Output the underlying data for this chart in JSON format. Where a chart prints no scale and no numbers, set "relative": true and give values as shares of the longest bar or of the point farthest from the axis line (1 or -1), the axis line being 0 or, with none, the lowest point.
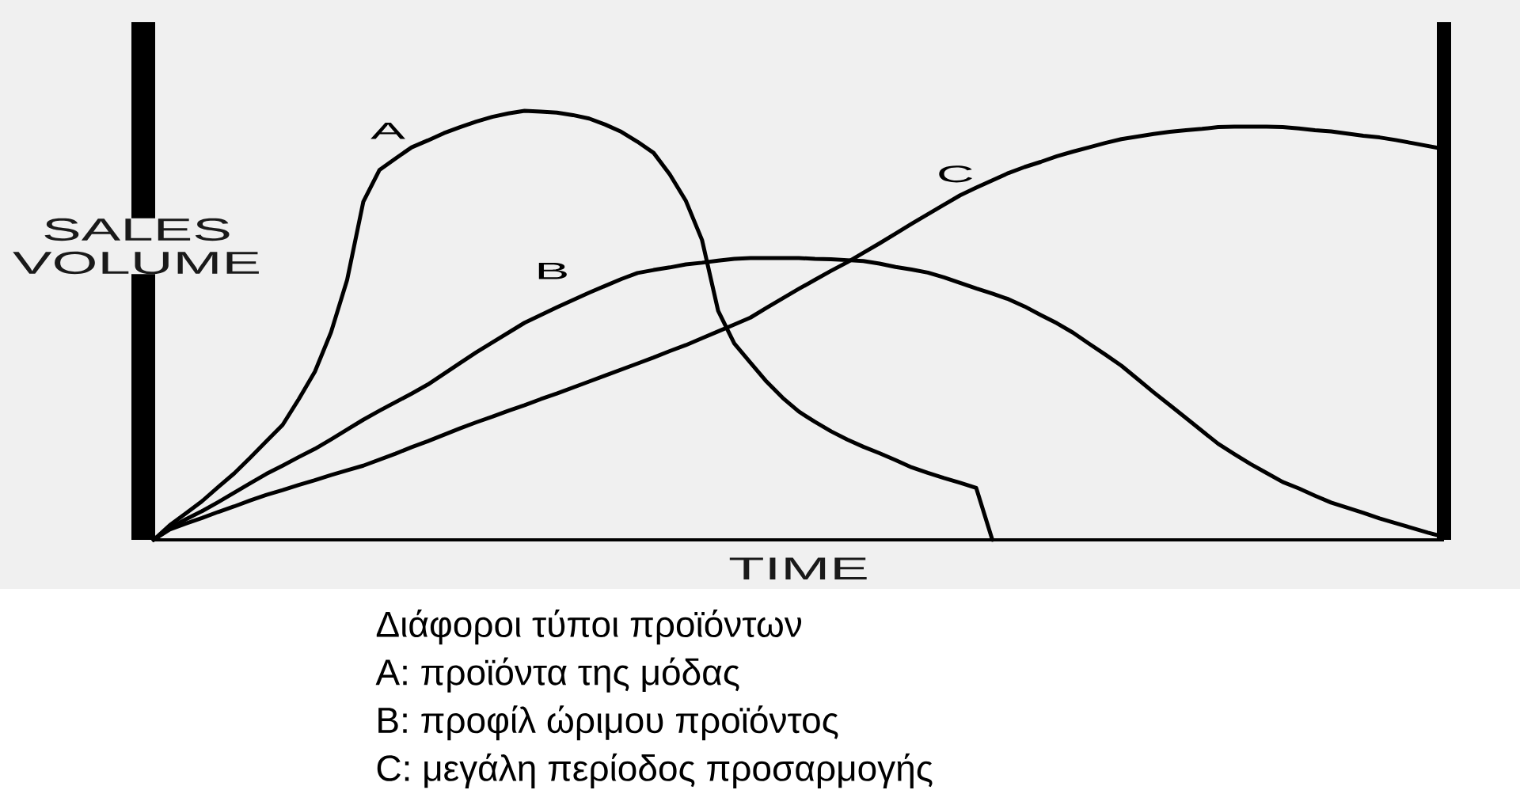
{
  "chart_data": {
    "type": "line",
    "relative": true,
    "xlabel": "TIME",
    "ylabel": "SALES VOLUME",
    "categories": [
      null,
      null,
      null,
      null,
      null,
      null,
      null,
      null,
      null,
      null,
      null,
      null,
      null,
      null,
      null,
      null,
      null,
      null,
      null,
      null,
      null,
      null,
      null,
      null,
      null,
      null,
      null,
      null,
      null,
      null,
      null,
      null,
      null,
      null,
      null,
      null,
      null,
      null,
      null,
      null,
      null,
      null,
      null,
      null,
      null,
      null,
      null,
      null,
      null,
      null,
      null,
      null,
      null,
      null,
      null,
      null,
      null,
      null,
      null,
      null,
      null,
      null,
      null,
      null,
      null,
      null,
      null,
      null,
      null,
      null,
      null,
      null,
      null,
      null,
      null,
      null,
      null,
      null,
      null,
      null,
      null
    ],
    "series": [
      {
        "name": "A",
        "color": "#000000",
        "values": [
          0,
          0.034,
          0.062,
          0.09,
          0.123,
          0.155,
          0.192,
          0.23,
          0.268,
          0.328,
          0.392,
          0.484,
          0.606,
          0.788,
          0.862,
          0.889,
          0.915,
          0.931,
          0.948,
          0.962,
          0.975,
          0.986,
          0.994,
          1,
          0.998,
          0.996,
          0.99,
          0.982,
          0.968,
          0.951,
          0.928,
          0.902,
          0.852,
          0.79,
          0.699,
          0.534,
          0.458,
          0.413,
          0.369,
          0.331,
          0.299,
          0.275,
          0.253,
          0.234,
          0.217,
          0.202,
          0.186,
          0.169,
          0.156,
          0.144,
          0.133,
          0.121,
          0,
          null,
          null,
          null,
          null,
          null,
          null,
          null,
          null,
          null,
          null,
          null,
          null,
          null,
          null,
          null,
          null,
          null,
          null,
          null,
          null,
          null,
          null,
          null,
          null,
          null,
          null,
          null,
          null
        ]
      },
      {
        "name": "B",
        "color": "#000000",
        "values": [
          0,
          0.028,
          0.048,
          0.067,
          0.088,
          0.11,
          0.132,
          0.154,
          0.173,
          0.193,
          0.212,
          0.234,
          0.257,
          0.28,
          0.301,
          0.321,
          0.341,
          0.362,
          0.387,
          0.412,
          0.437,
          0.46,
          0.483,
          0.506,
          0.524,
          0.542,
          0.559,
          0.576,
          0.592,
          0.608,
          0.622,
          0.629,
          0.635,
          0.642,
          0.646,
          0.651,
          0.655,
          0.657,
          0.657,
          0.657,
          0.657,
          0.655,
          0.654,
          0.652,
          0.65,
          0.644,
          0.636,
          0.63,
          0.623,
          0.612,
          0.599,
          0.586,
          0.574,
          0.561,
          0.544,
          0.524,
          0.505,
          0.483,
          0.457,
          0.432,
          0.406,
          0.375,
          0.344,
          0.314,
          0.284,
          0.254,
          0.224,
          0.2,
          0.177,
          0.156,
          0.135,
          0.12,
          0.103,
          0.087,
          0.075,
          0.063,
          0.05,
          0.039,
          0.028,
          0.017,
          0.007
        ]
      },
      {
        "name": "C",
        "color": "#000000",
        "values": [
          0,
          0.024,
          0.038,
          0.051,
          0.065,
          0.078,
          0.092,
          0.105,
          0.116,
          0.128,
          0.139,
          0.151,
          0.162,
          0.173,
          0.187,
          0.201,
          0.216,
          0.23,
          0.245,
          0.26,
          0.274,
          0.287,
          0.301,
          0.314,
          0.328,
          0.341,
          0.355,
          0.369,
          0.383,
          0.397,
          0.411,
          0.425,
          0.44,
          0.454,
          0.47,
          0.486,
          0.502,
          0.518,
          0.541,
          0.563,
          0.585,
          0.606,
          0.627,
          0.647,
          0.669,
          0.691,
          0.714,
          0.737,
          0.759,
          0.781,
          0.803,
          0.821,
          0.838,
          0.855,
          0.869,
          0.881,
          0.894,
          0.905,
          0.915,
          0.925,
          0.934,
          0.94,
          0.946,
          0.951,
          0.955,
          0.958,
          0.962,
          0.963,
          0.963,
          0.963,
          0.962,
          0.959,
          0.955,
          0.952,
          0.947,
          0.942,
          0.938,
          0.932,
          0.925,
          0.918,
          0.911
        ]
      }
    ],
    "annotations": [
      "Διάφοροι τύποι προϊόντων",
      "A: προϊόντα της μόδας",
      "B: προφίλ ώριμου προϊόντος",
      "C: μεγάλη περίοδος προσαρμογής"
    ]
  }
}
